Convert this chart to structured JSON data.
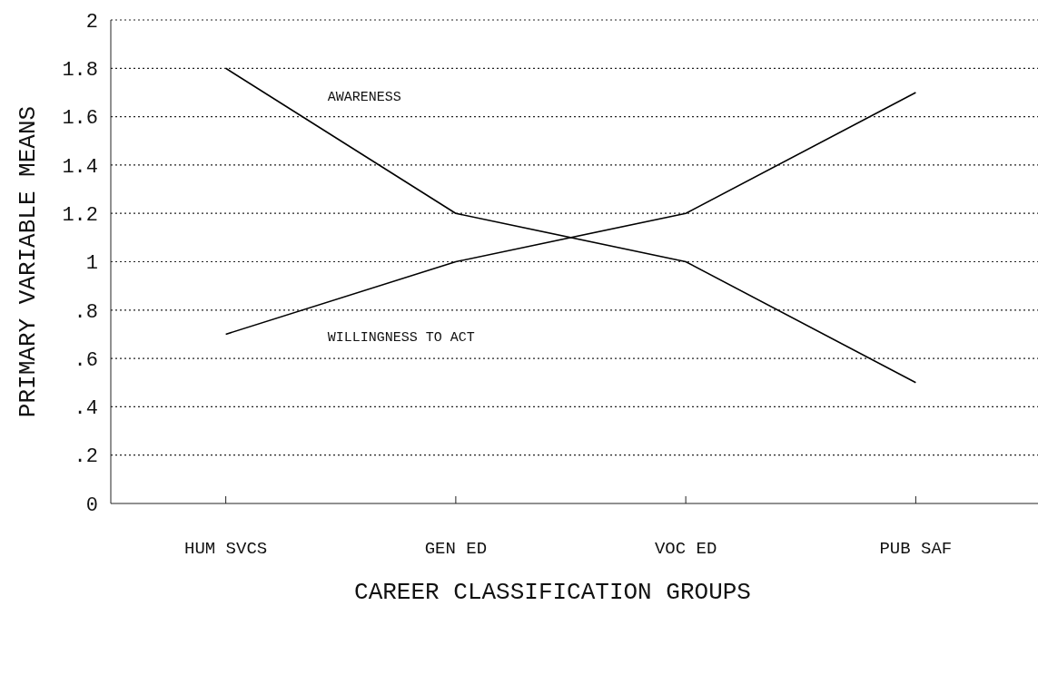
{
  "chart_data": {
    "type": "line",
    "xlabel": "CAREER CLASSIFICATION GROUPS",
    "ylabel": "PRIMARY VARIABLE MEANS",
    "categories": [
      "HUM SVCS",
      "GEN ED",
      "VOC ED",
      "PUB SAF"
    ],
    "series": [
      {
        "name": "AWARENESS",
        "color": "#000000",
        "values": [
          1.8,
          1.2,
          1.0,
          0.5
        ]
      },
      {
        "name": "WILLINGNESS TO ACT",
        "color": "#000000",
        "values": [
          0.7,
          1.0,
          1.2,
          1.7
        ]
      }
    ],
    "ylim": [
      0,
      2
    ],
    "yticks": [
      {
        "value": 0,
        "label": "0"
      },
      {
        "value": 0.2,
        "label": ".2"
      },
      {
        "value": 0.4,
        "label": ".4"
      },
      {
        "value": 0.6,
        "label": ".6"
      },
      {
        "value": 0.8,
        "label": ".8"
      },
      1,
      1.2,
      1.4,
      1.6,
      1.8,
      2
    ],
    "grid": "y",
    "legend": false,
    "marker": "none",
    "line_style": "solid"
  }
}
